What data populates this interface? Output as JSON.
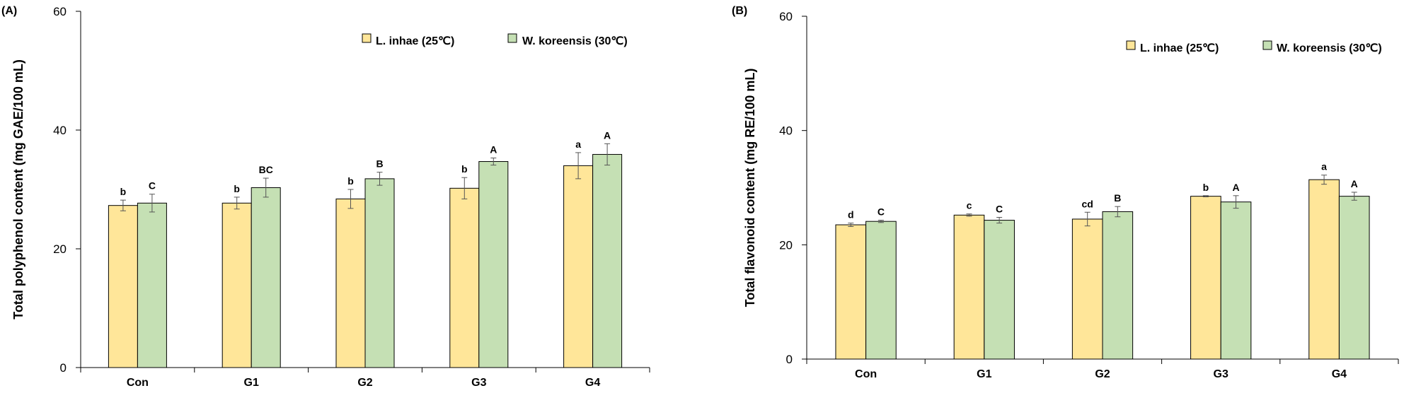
{
  "chart_data": [
    {
      "type": "bar",
      "panel_label": "(A)",
      "title": "",
      "xlabel": "",
      "ylabel": "Total polyphenol content (mg GAE/100 mL)",
      "ylim": [
        0,
        60
      ],
      "yticks": [
        "0",
        "20",
        "40",
        "60"
      ],
      "categories": [
        "Con",
        "G1",
        "G2",
        "G3",
        "G4"
      ],
      "legend_position": "top-right",
      "grid": false,
      "series": [
        {
          "name": "L. inhae (25℃)",
          "color": "#FFE699",
          "values": [
            27.3,
            27.7,
            28.4,
            30.2,
            34.0
          ],
          "errors": [
            0.9,
            1.0,
            1.6,
            1.8,
            2.2
          ],
          "significance": [
            "b",
            "b",
            "b",
            "b",
            "a"
          ]
        },
        {
          "name": "W. koreensis (30℃)",
          "color": "#C5E0B4",
          "values": [
            27.7,
            30.3,
            31.8,
            34.7,
            35.9
          ],
          "errors": [
            1.5,
            1.6,
            1.1,
            0.6,
            1.8
          ],
          "significance": [
            "C",
            "BC",
            "B",
            "A",
            "A"
          ]
        }
      ]
    },
    {
      "type": "bar",
      "panel_label": "(B)",
      "title": "",
      "xlabel": "",
      "ylabel": "Total flavonoid content (mg RE/100 mL)",
      "ylim": [
        0,
        60
      ],
      "yticks": [
        "0",
        "20",
        "40",
        "60"
      ],
      "categories": [
        "Con",
        "G1",
        "G2",
        "G3",
        "G4"
      ],
      "legend_position": "top-right",
      "grid": false,
      "series": [
        {
          "name": "L. inhae (25℃)",
          "color": "#FFE699",
          "values": [
            23.5,
            25.2,
            24.5,
            28.5,
            31.4
          ],
          "errors": [
            0.3,
            0.2,
            1.2,
            0.1,
            0.8
          ],
          "significance": [
            "d",
            "c",
            "cd",
            "b",
            "a"
          ]
        },
        {
          "name": "W. koreensis (30℃)",
          "color": "#C5E0B4",
          "values": [
            24.1,
            24.3,
            25.8,
            27.5,
            28.5
          ],
          "errors": [
            0.2,
            0.5,
            0.9,
            1.1,
            0.7
          ],
          "significance": [
            "C",
            "C",
            "B",
            "A",
            "A"
          ]
        }
      ]
    }
  ]
}
